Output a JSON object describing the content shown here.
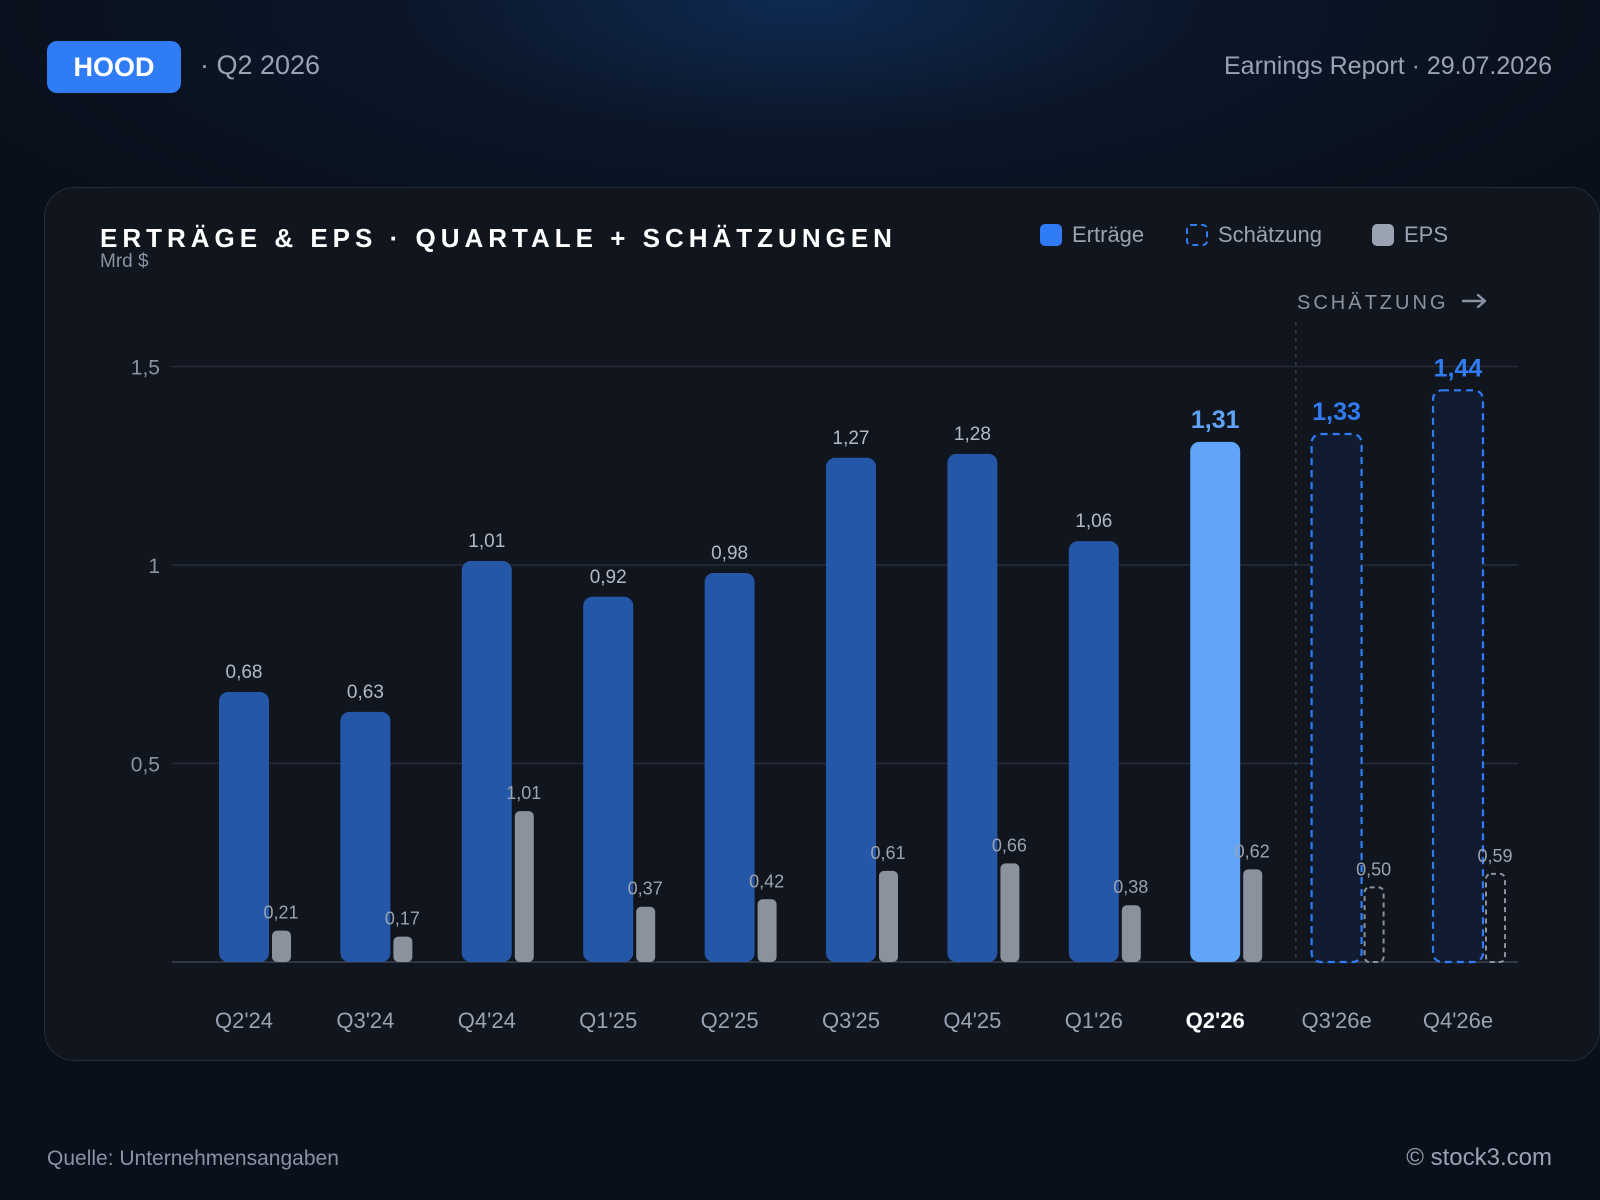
{
  "header": {
    "ticker": "HOOD",
    "period": "· Q2 2026",
    "report": "Earnings Report · 29.07.2026"
  },
  "card": {
    "title": "ERTRÄGE & EPS · QUARTALE + SCHÄTZUNGEN",
    "unit": "Mrd $",
    "legend": {
      "revenue": "Erträge",
      "estimate": "Schätzung",
      "eps": "EPS"
    },
    "estimate_marker": "SCHÄTZUNG",
    "estimate_marker_icon": "arrow-right-icon"
  },
  "footer": {
    "source": "Quelle: Unternehmensangaben",
    "brand": "© stock3.com"
  },
  "colors": {
    "revenue": "#2457a8",
    "current": "#60a5fa",
    "estimate_border": "#2f7cf6",
    "eps": "#8b929e",
    "grid": "#262d39"
  },
  "chart_data": {
    "type": "bar",
    "ylim": [
      0,
      1.5
    ],
    "yticks": [
      "0,5",
      "1",
      "1,5"
    ],
    "ytick_values": [
      0.5,
      1,
      1.5
    ],
    "categories": [
      "Q2'24",
      "Q3'24",
      "Q4'24",
      "Q1'25",
      "Q2'25",
      "Q3'25",
      "Q4'25",
      "Q1'26",
      "Q2'26",
      "Q3'26e",
      "Q4'26e"
    ],
    "current_index": 8,
    "estimate_from_index": 9,
    "series": [
      {
        "name": "Erträge",
        "values": [
          0.68,
          0.63,
          1.01,
          0.92,
          0.98,
          1.27,
          1.28,
          1.06,
          1.31,
          1.33,
          1.44
        ],
        "labels": [
          "0,68",
          "0,63",
          "1,01",
          "0,92",
          "0,98",
          "1,27",
          "1,28",
          "1,06",
          "1,31",
          "1,33",
          "1,44"
        ]
      },
      {
        "name": "EPS",
        "values": [
          0.21,
          0.17,
          1.01,
          0.37,
          0.42,
          0.61,
          0.66,
          0.38,
          0.62,
          0.5,
          0.59
        ],
        "labels": [
          "0,21",
          "0,17",
          "1,01",
          "0,37",
          "0,42",
          "0,61",
          "0,66",
          "0,38",
          "0,62",
          "0,50",
          "0,59"
        ]
      }
    ]
  }
}
